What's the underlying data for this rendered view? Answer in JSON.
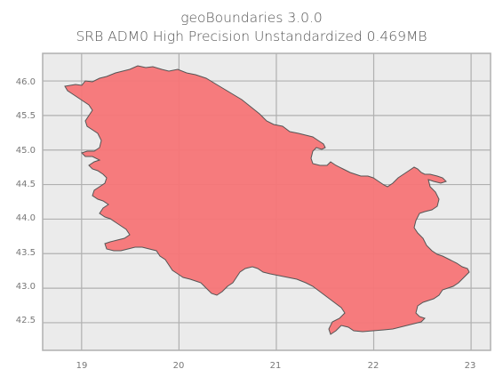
{
  "title": {
    "line1": "geoBoundaries 3.0.0",
    "line2": "SRB ADM0 High Precision Unstandardized 0.469MB"
  },
  "map": {
    "fill_color": "#f77577",
    "edge_color": "#555555",
    "background_color": "#ebebeb",
    "grid_color": "#b0b0b0",
    "x_ticks": [
      "19",
      "20",
      "21",
      "22",
      "23"
    ],
    "y_ticks": [
      "46.0",
      "45.5",
      "45.0",
      "44.5",
      "44.0",
      "43.5",
      "43.0",
      "42.5"
    ],
    "x_lim": [
      18.6,
      23.2
    ],
    "y_lim": [
      42.1,
      46.4
    ]
  }
}
